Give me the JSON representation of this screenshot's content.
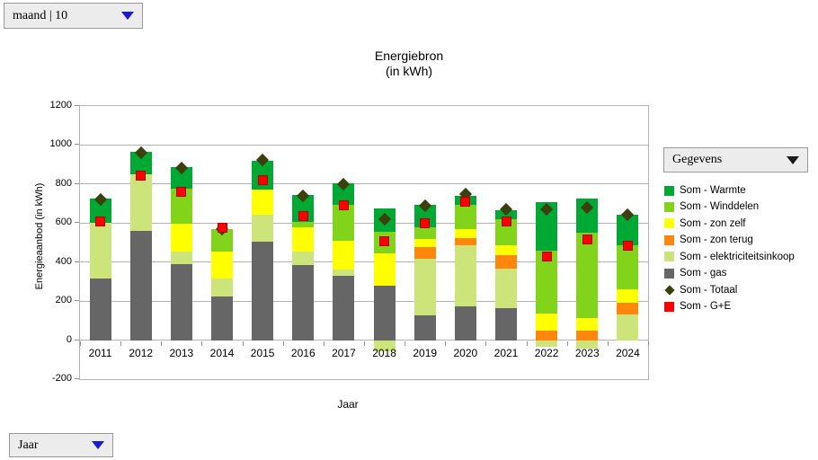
{
  "controls": {
    "page_field": {
      "label": "maand | 10"
    },
    "data_field": {
      "label": "Gegevens"
    },
    "row_field": {
      "label": "Jaar"
    }
  },
  "chart_data": {
    "type": "bar",
    "stacked": true,
    "title": "Energiebron",
    "subtitle": "(in kWh)",
    "xlabel": "Jaar",
    "ylabel": "Energieaanbod (in kWh)",
    "ylim": [
      -200,
      1200
    ],
    "ytick_step": 200,
    "grid": true,
    "legend_position": "right",
    "categories": [
      "2011",
      "2012",
      "2013",
      "2014",
      "2015",
      "2016",
      "2017",
      "2018",
      "2019",
      "2020",
      "2021",
      "2022",
      "2023",
      "2024"
    ],
    "series": [
      {
        "name": "Som - gas",
        "type": "bar",
        "color": "#666666",
        "values": [
          315,
          560,
          390,
          225,
          505,
          385,
          330,
          280,
          125,
          175,
          165,
          0,
          0,
          0
        ]
      },
      {
        "name": "Som - elektriciteitsinkoop",
        "type": "bar",
        "color": "#cde47a",
        "values": [
          285,
          290,
          65,
          90,
          140,
          70,
          30,
          -55,
          290,
          310,
          200,
          -35,
          -45,
          130
        ]
      },
      {
        "name": "Som - zon terug",
        "type": "bar",
        "color": "#ff860d",
        "values": [
          0,
          0,
          0,
          0,
          0,
          0,
          0,
          0,
          60,
          40,
          70,
          50,
          50,
          60
        ]
      },
      {
        "name": "Som - zon zelf",
        "type": "bar",
        "color": "#ffff00",
        "values": [
          0,
          0,
          140,
          140,
          125,
          125,
          150,
          165,
          45,
          45,
          50,
          85,
          65,
          70
        ]
      },
      {
        "name": "Som - Winddelen",
        "type": "bar",
        "color": "#81d41a",
        "values": [
          0,
          0,
          180,
          115,
          0,
          25,
          185,
          110,
          60,
          125,
          135,
          325,
          435,
          225
        ]
      },
      {
        "name": "Som - Warmte",
        "type": "bar",
        "color": "#00a933",
        "values": [
          125,
          115,
          110,
          0,
          150,
          140,
          110,
          120,
          115,
          45,
          45,
          245,
          175,
          160
        ]
      },
      {
        "name": "Som - Totaal",
        "type": "point-diamond",
        "color": "#3b400e",
        "values": [
          720,
          960,
          880,
          570,
          925,
          740,
          800,
          620,
          690,
          750,
          670,
          670,
          680,
          645
        ]
      },
      {
        "name": "Som - G+E",
        "type": "point-square",
        "color": "#ff0000",
        "values": [
          610,
          845,
          760,
          575,
          820,
          635,
          690,
          505,
          600,
          710,
          610,
          430,
          515,
          485
        ]
      }
    ],
    "legend_order": [
      "Som - Warmte",
      "Som - Winddelen",
      "Som - zon zelf",
      "Som - zon terug",
      "Som - elektriciteitsinkoop",
      "Som - gas",
      "Som - Totaal",
      "Som - G+E"
    ],
    "colors": {
      "gridline": "#b3b3b3",
      "axis_tick": "#8f8f8f",
      "dropdown_arrow_blue": "#1a1ad4",
      "dropdown_arrow_dark": "#1c1c1c"
    }
  }
}
